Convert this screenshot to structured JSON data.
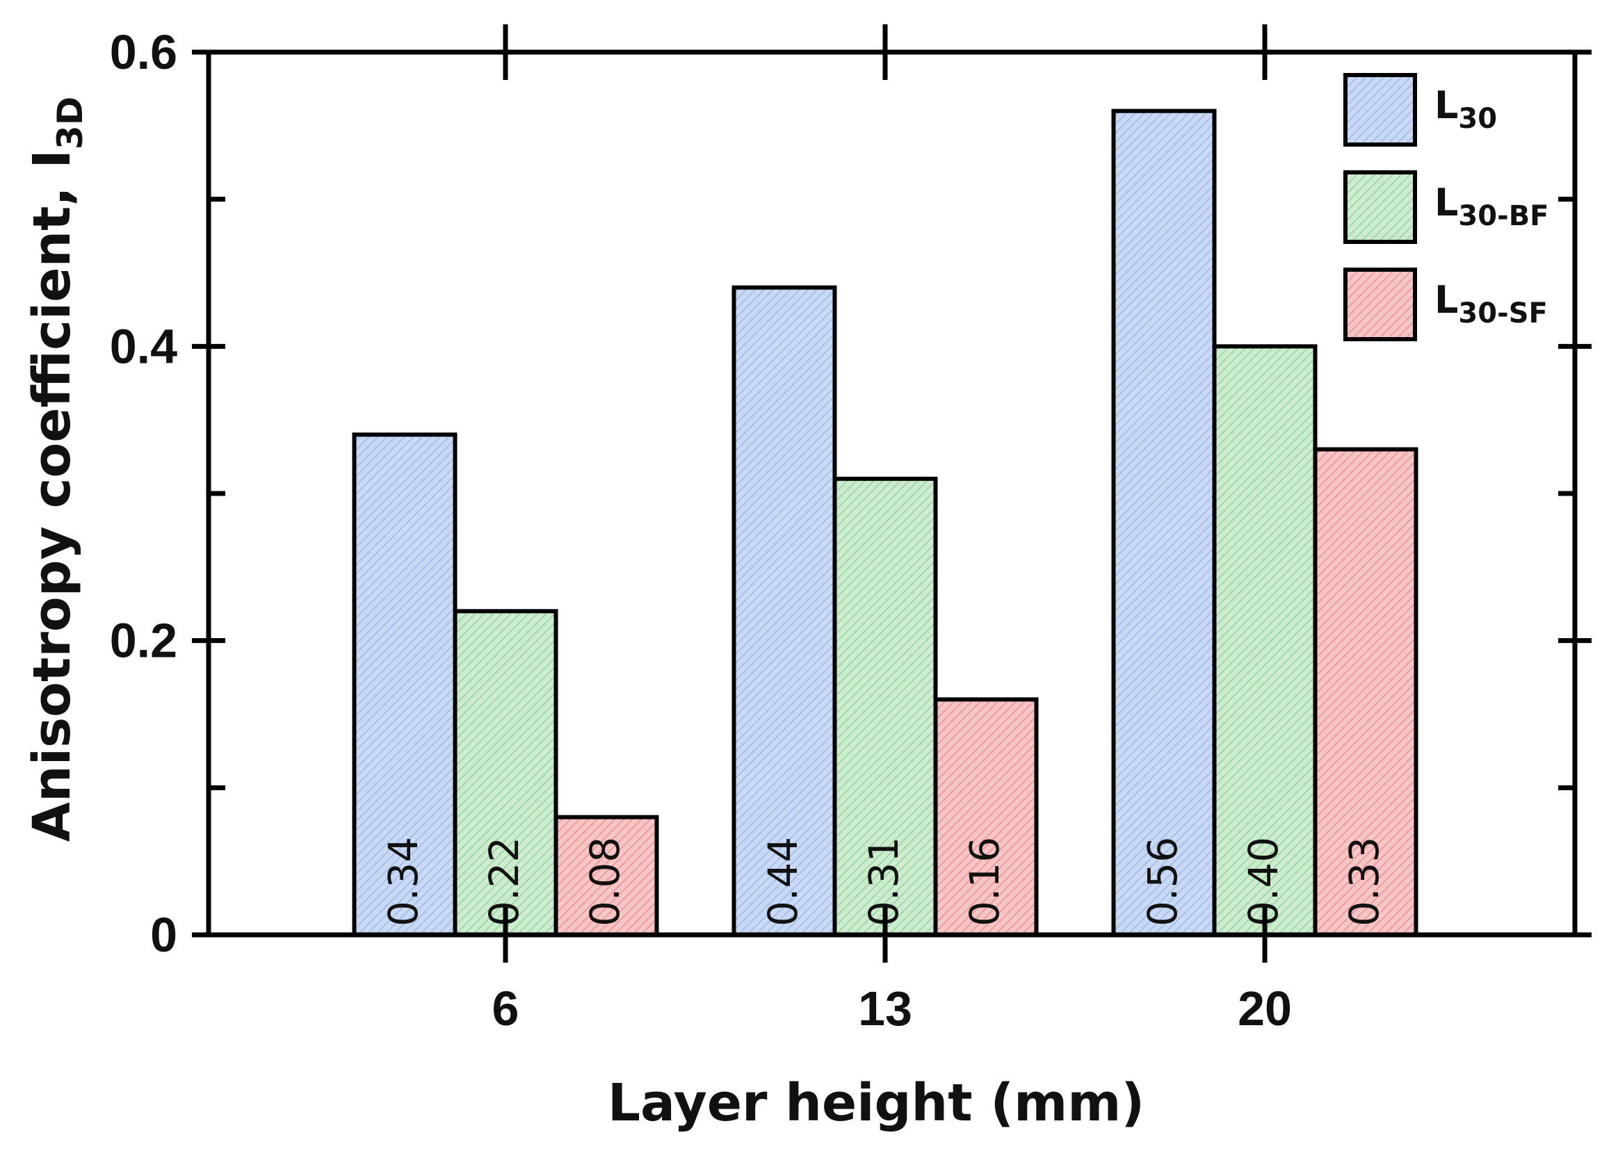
{
  "chart_data": {
    "type": "bar",
    "title": "",
    "xlabel": "Layer height (mm)",
    "ylabel": {
      "main": "Anisotropy coefficient, I",
      "sub": "3D"
    },
    "categories": [
      "6",
      "13",
      "20"
    ],
    "ylim": [
      0,
      0.6
    ],
    "yticks": [
      "0",
      "0.2",
      "0.4",
      "0.6"
    ],
    "grid": false,
    "legend_position": "top-right",
    "series": [
      {
        "name_main": "L",
        "name_sub": "30",
        "color": "#c9d9f4",
        "hatch": "#9db8e8",
        "values": [
          0.34,
          0.44,
          0.56
        ],
        "labels": [
          "0.34",
          "0.44",
          "0.56"
        ]
      },
      {
        "name_main": "L",
        "name_sub": "30-BF",
        "color": "#cdeccf",
        "hatch": "#93d39a",
        "values": [
          0.22,
          0.31,
          0.4
        ],
        "labels": [
          "0.22",
          "0.31",
          "0.40"
        ]
      },
      {
        "name_main": "L",
        "name_sub": "30-SF",
        "color": "#f6c6c6",
        "hatch": "#ee8f90",
        "values": [
          0.08,
          0.16,
          0.33
        ],
        "labels": [
          "0.08",
          "0.16",
          "0.33"
        ]
      }
    ]
  }
}
